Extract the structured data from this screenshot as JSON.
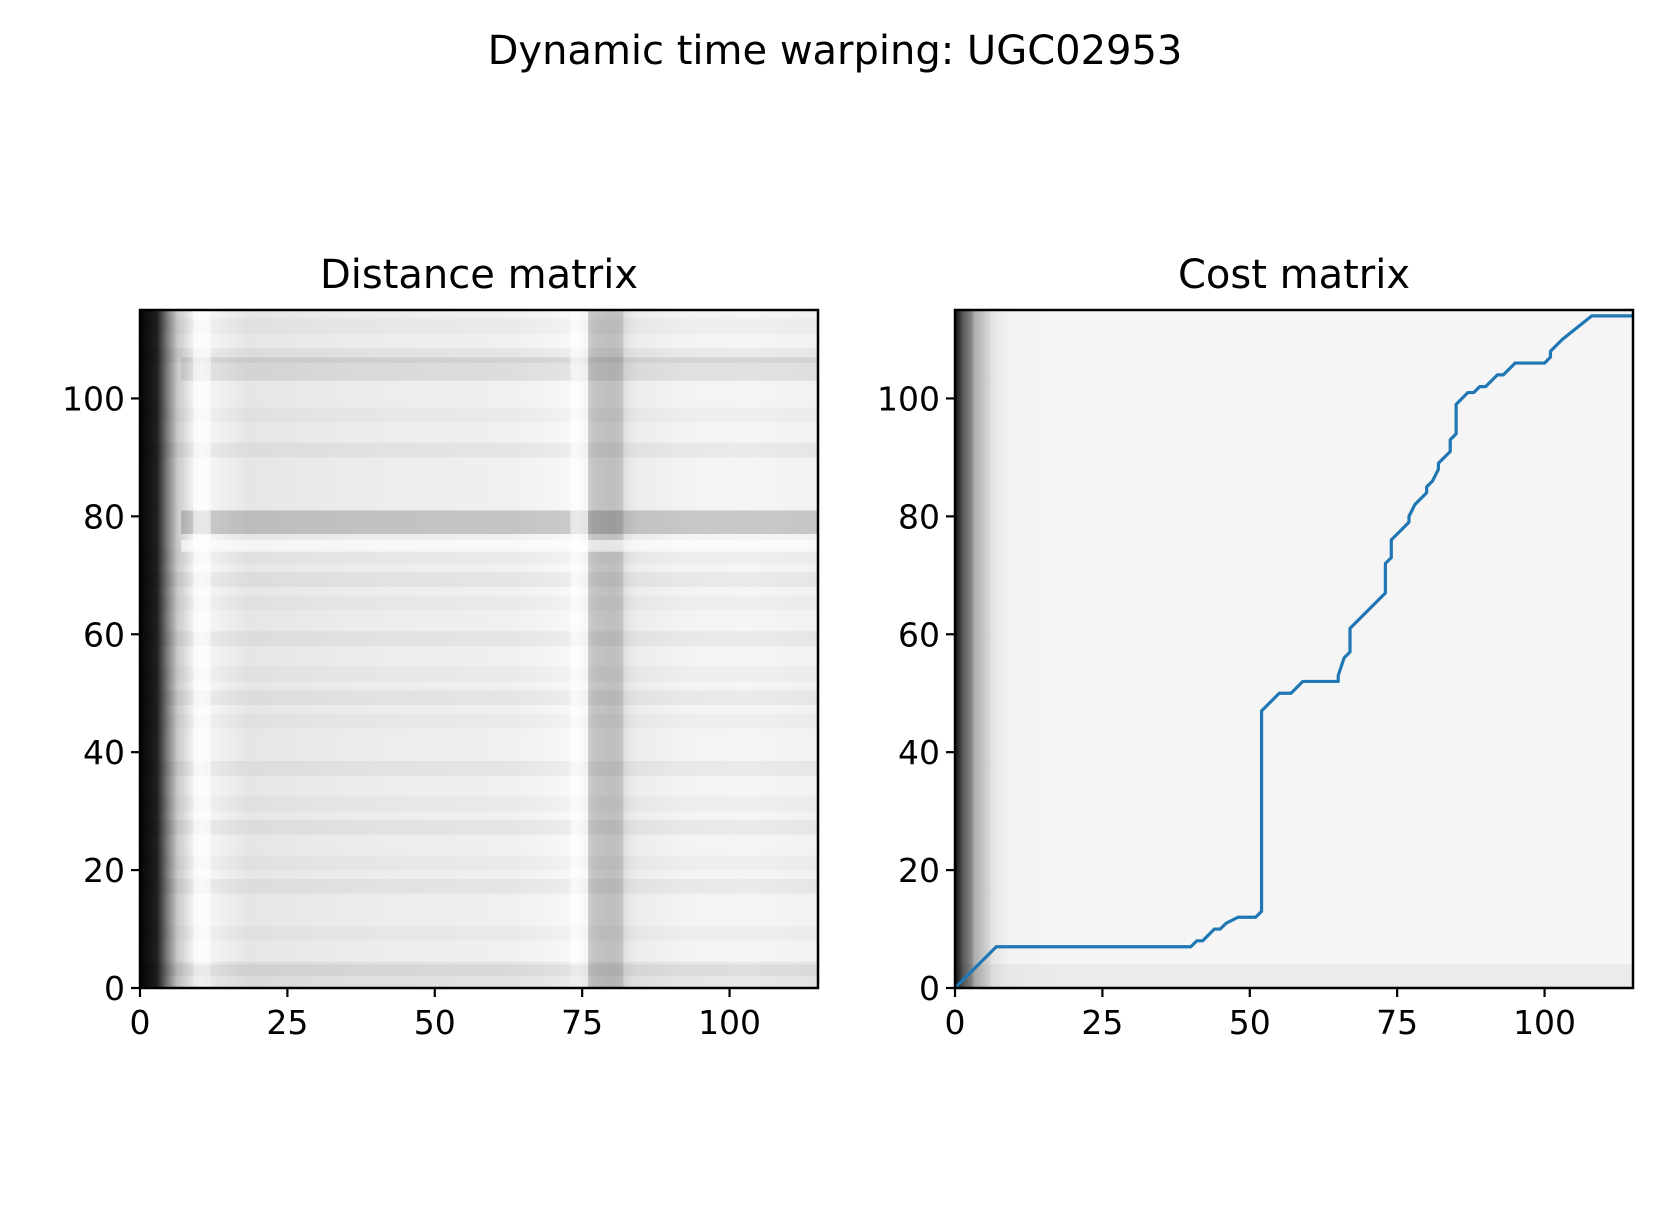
{
  "figure": {
    "title": "Dynamic time warping: UGC02953"
  },
  "chart_data": [
    {
      "type": "heatmap",
      "title": "Distance matrix",
      "xlabel": "",
      "ylabel": "",
      "xlim": [
        0,
        115
      ],
      "ylim": [
        0,
        115
      ],
      "xticks": [
        0,
        25,
        50,
        75,
        100
      ],
      "yticks": [
        0,
        20,
        40,
        60,
        80,
        100
      ],
      "colormap": "gray_r",
      "grid": false,
      "dark_regions": [
        {
          "axis": "x",
          "range": [
            0,
            3
          ],
          "level": "darkest"
        },
        {
          "axis": "x",
          "range": [
            3,
            7
          ],
          "level": "dark"
        },
        {
          "axis": "x",
          "range": [
            76,
            82
          ],
          "level": "medium"
        },
        {
          "axis": "y",
          "range": [
            77,
            81
          ],
          "level": "medium"
        },
        {
          "axis": "y",
          "range": [
            103,
            107
          ],
          "level": "light"
        }
      ],
      "light_lines": [
        {
          "axis": "x",
          "range": [
            9,
            12
          ],
          "level": "light"
        },
        {
          "axis": "x",
          "range": [
            73,
            76
          ],
          "level": "light"
        },
        {
          "axis": "y",
          "range": [
            74,
            76
          ],
          "level": "light"
        }
      ]
    },
    {
      "type": "heatmap",
      "title": "Cost matrix",
      "xlabel": "",
      "ylabel": "",
      "xlim": [
        0,
        115
      ],
      "ylim": [
        0,
        115
      ],
      "xticks": [
        0,
        25,
        50,
        75,
        100
      ],
      "yticks": [
        0,
        20,
        40,
        60,
        80,
        100
      ],
      "colormap": "gray_r",
      "grid": false,
      "dark_regions": [
        {
          "axis": "x",
          "range": [
            0,
            1
          ],
          "level": "darkest"
        },
        {
          "axis": "x",
          "range": [
            1,
            3
          ],
          "level": "dark"
        },
        {
          "axis": "x",
          "range": [
            3,
            6
          ],
          "level": "medium"
        }
      ],
      "series": [
        {
          "color": "#1f77b4",
          "x": [
            0,
            7,
            40,
            41,
            42,
            44,
            45,
            46,
            48,
            51,
            52,
            52,
            54,
            55,
            57,
            59,
            65,
            65,
            66,
            67,
            67,
            73,
            73,
            74,
            74,
            76,
            77,
            77,
            78,
            79,
            80,
            80,
            81,
            82,
            82,
            83,
            84,
            84,
            85,
            85,
            86,
            87,
            88,
            89,
            90,
            91,
            92,
            93,
            94,
            95,
            96,
            100,
            101,
            101,
            102,
            103,
            108,
            115
          ],
          "y": [
            0,
            7,
            7,
            8,
            8,
            10,
            10,
            11,
            12,
            12,
            13,
            47,
            49,
            50,
            50,
            52,
            52,
            53,
            56,
            57,
            61,
            67,
            72,
            73,
            76,
            78,
            79,
            80,
            82,
            83,
            84,
            85,
            86,
            88,
            89,
            90,
            91,
            93,
            94,
            99,
            100,
            101,
            101,
            102,
            102,
            103,
            104,
            104,
            105,
            106,
            106,
            106,
            107,
            108,
            109,
            110,
            114,
            114
          ]
        }
      ]
    }
  ]
}
